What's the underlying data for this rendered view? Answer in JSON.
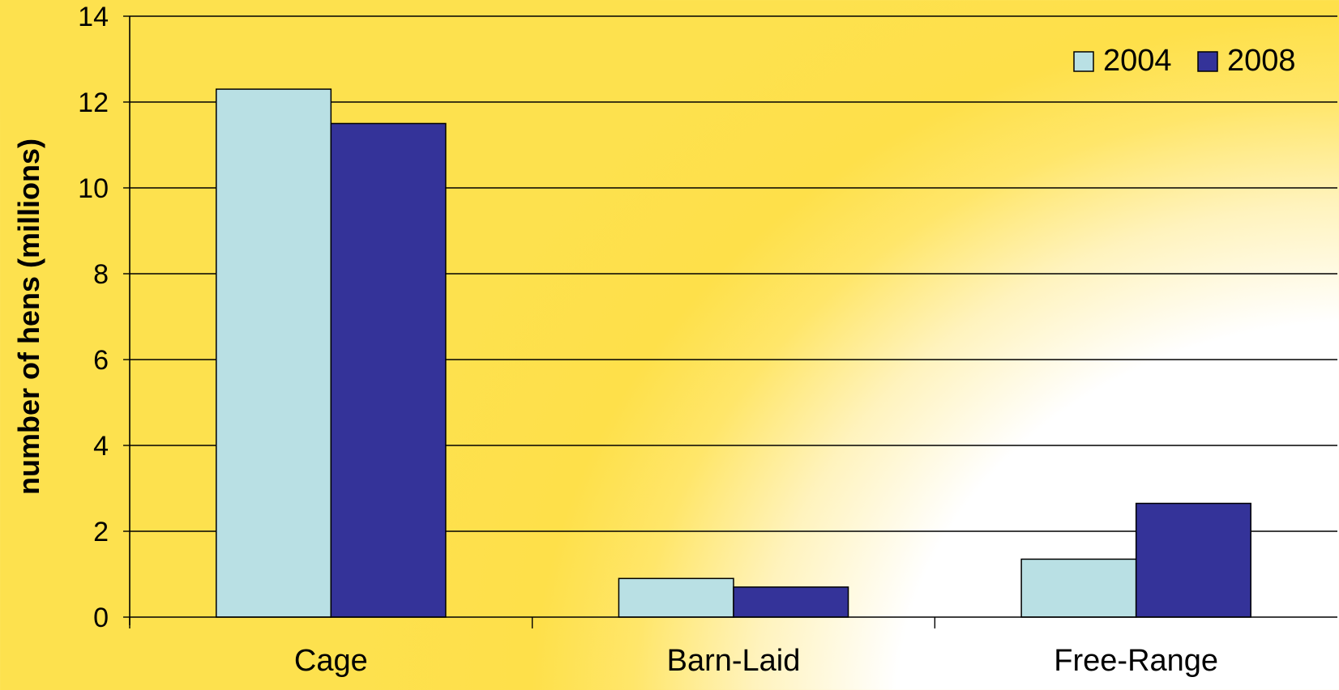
{
  "chart_data": {
    "type": "bar",
    "title": "",
    "xlabel": "",
    "ylabel": "number of hens (millions)",
    "categories": [
      "Cage",
      "Barn-Laid",
      "Free-Range"
    ],
    "series": [
      {
        "name": "2004",
        "values": [
          12.3,
          0.9,
          1.35
        ],
        "color": "#b9e0e4"
      },
      {
        "name": "2008",
        "values": [
          11.5,
          0.7,
          2.65
        ],
        "color": "#343399"
      }
    ],
    "ylim": [
      0,
      14
    ],
    "yticks": [
      0,
      2,
      4,
      6,
      8,
      10,
      12,
      14
    ],
    "grid": true,
    "legend": "top-right"
  }
}
